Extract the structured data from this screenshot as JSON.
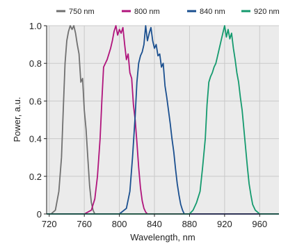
{
  "chart_data": {
    "type": "line",
    "title": "",
    "xlabel": "Wavelength, nm",
    "ylabel": "Power, a.u.",
    "xlim": [
      717,
      982
    ],
    "ylim": [
      0,
      1.0
    ],
    "x_ticks": [
      720,
      760,
      800,
      840,
      880,
      920,
      960
    ],
    "y_ticks": [
      0,
      0.2,
      0.4,
      0.6,
      0.8,
      1.0
    ],
    "y_tick_labels": [
      "0",
      "0.2",
      "0.4",
      "0.6",
      "0.8",
      "1.0"
    ],
    "grid": true,
    "legend_position": "top",
    "plot_background": "#ebebeb",
    "series": [
      {
        "name": "750 nm",
        "color": "#707070",
        "x": [
          717,
          722,
          727,
          731,
          734,
          736,
          738,
          740,
          742,
          744,
          746,
          748,
          750,
          752,
          754,
          756,
          758,
          760,
          762,
          764,
          766,
          768,
          770,
          772,
          775,
          780,
          982
        ],
        "y": [
          0,
          0.0,
          0.02,
          0.12,
          0.3,
          0.55,
          0.8,
          0.92,
          0.97,
          1.0,
          0.98,
          1.0,
          0.96,
          0.9,
          0.85,
          0.7,
          0.72,
          0.55,
          0.45,
          0.3,
          0.15,
          0.06,
          0.02,
          0.0,
          0.0,
          0,
          0
        ]
      },
      {
        "name": "800 nm",
        "color": "#b0147c",
        "x": [
          717,
          760,
          768,
          772,
          775,
          778,
          780,
          782,
          784,
          786,
          788,
          790,
          792,
          794,
          796,
          798,
          800,
          802,
          804,
          806,
          808,
          810,
          812,
          814,
          816,
          818,
          820,
          822,
          824,
          826,
          828,
          830,
          832,
          835,
          840,
          982
        ],
        "y": [
          0,
          0,
          0.02,
          0.08,
          0.2,
          0.4,
          0.6,
          0.78,
          0.8,
          0.82,
          0.85,
          0.88,
          0.92,
          0.97,
          1.0,
          0.95,
          0.98,
          0.96,
          0.99,
          0.9,
          0.82,
          0.85,
          0.75,
          0.72,
          0.58,
          0.5,
          0.38,
          0.25,
          0.14,
          0.07,
          0.03,
          0.01,
          0.0,
          0.0,
          0,
          0
        ]
      },
      {
        "name": "840 nm",
        "color": "#1a4f8f",
        "x": [
          717,
          800,
          808,
          812,
          815,
          818,
          820,
          822,
          824,
          826,
          828,
          830,
          832,
          834,
          836,
          838,
          840,
          842,
          844,
          846,
          848,
          850,
          852,
          854,
          856,
          858,
          860,
          862,
          864,
          866,
          868,
          870,
          872,
          874,
          876,
          878,
          880,
          982
        ],
        "y": [
          0,
          0,
          0.03,
          0.12,
          0.3,
          0.52,
          0.7,
          0.8,
          0.84,
          0.86,
          0.9,
          1.0,
          0.92,
          0.96,
          0.99,
          0.92,
          0.88,
          0.9,
          0.84,
          0.85,
          0.78,
          0.8,
          0.68,
          0.62,
          0.55,
          0.48,
          0.4,
          0.33,
          0.24,
          0.16,
          0.1,
          0.05,
          0.02,
          0.0,
          0.0,
          0,
          0,
          0
        ]
      },
      {
        "name": "920 nm",
        "color": "#149a6e",
        "x": [
          717,
          870,
          880,
          884,
          888,
          892,
          895,
          898,
          900,
          902,
          904,
          906,
          908,
          910,
          912,
          914,
          916,
          918,
          920,
          922,
          924,
          926,
          928,
          930,
          932,
          934,
          936,
          938,
          940,
          942,
          944,
          946,
          948,
          950,
          952,
          955,
          960,
          965,
          970,
          982
        ],
        "y": [
          0,
          0,
          0.0,
          0.02,
          0.06,
          0.12,
          0.25,
          0.4,
          0.58,
          0.7,
          0.73,
          0.75,
          0.78,
          0.8,
          0.84,
          0.88,
          0.92,
          0.96,
          1.0,
          0.94,
          0.98,
          0.93,
          0.96,
          0.88,
          0.82,
          0.75,
          0.7,
          0.62,
          0.55,
          0.45,
          0.35,
          0.25,
          0.16,
          0.1,
          0.05,
          0.02,
          0.0,
          0.0,
          0,
          0
        ]
      }
    ]
  }
}
